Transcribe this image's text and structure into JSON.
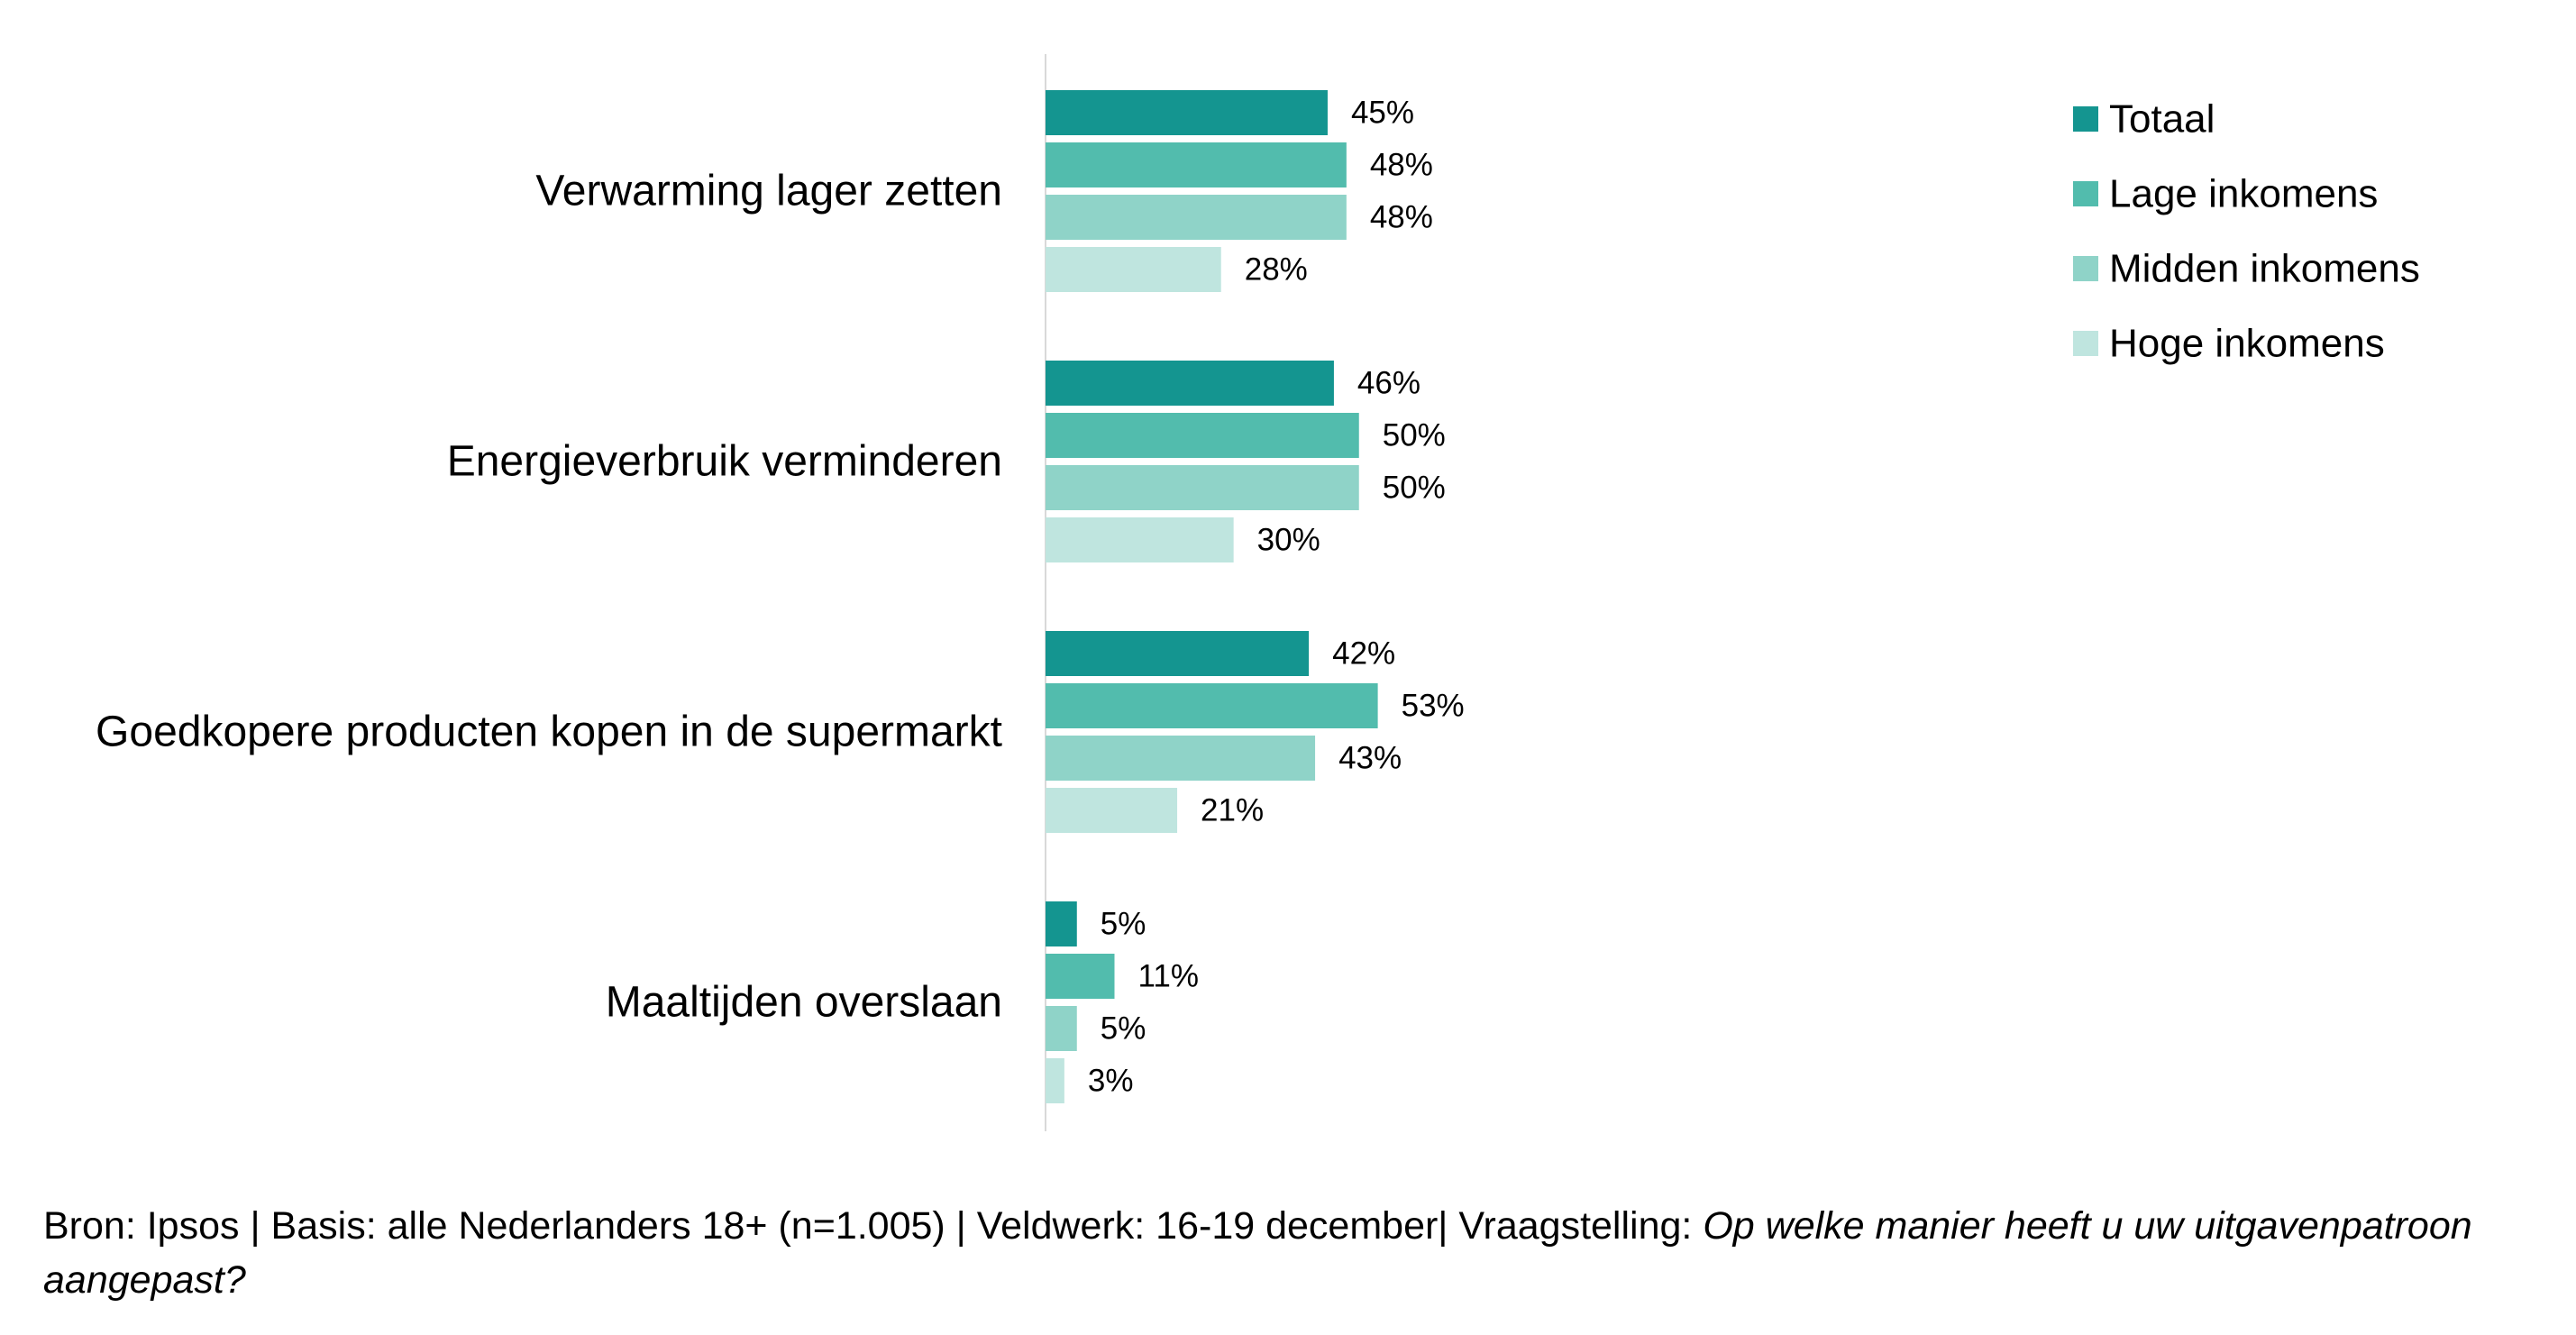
{
  "chart_data": {
    "type": "bar",
    "orientation": "horizontal",
    "categories": [
      "Verwarming lager zetten",
      "Energieverbruik verminderen",
      "Goedkopere producten kopen in de supermarkt",
      "Maaltijden overslaan"
    ],
    "series": [
      {
        "name": "Totaal",
        "values": [
          45,
          46,
          42,
          5
        ],
        "labels": [
          "45%",
          "46%",
          "42%",
          "5%"
        ],
        "color": "#149590"
      },
      {
        "name": "Lage inkomens",
        "values": [
          48,
          50,
          53,
          11
        ],
        "labels": [
          "48%",
          "50%",
          "53%",
          "11%"
        ],
        "color": "#52bcad"
      },
      {
        "name": "Midden inkomens",
        "values": [
          48,
          50,
          43,
          5
        ],
        "labels": [
          "48%",
          "50%",
          "43%",
          "5%"
        ],
        "color": "#8fd3c8"
      },
      {
        "name": "Hoge inkomens",
        "values": [
          28,
          30,
          21,
          3
        ],
        "labels": [
          "28%",
          "30%",
          "21%",
          "3%"
        ],
        "color": "#bfe5df"
      }
    ],
    "xlim": [
      0,
      100
    ],
    "grid": false,
    "legend_position": "top-right",
    "axis_line_color": "#d9d9d9"
  },
  "footnote": {
    "text": "Bron: Ipsos | Basis: alle Nederlanders 18+ (n=1.005) | Veldwerk: 16-19 december| Vraagstelling: ",
    "question": "Op welke manier heeft u uw uitgavenpatroon aangepast?"
  }
}
